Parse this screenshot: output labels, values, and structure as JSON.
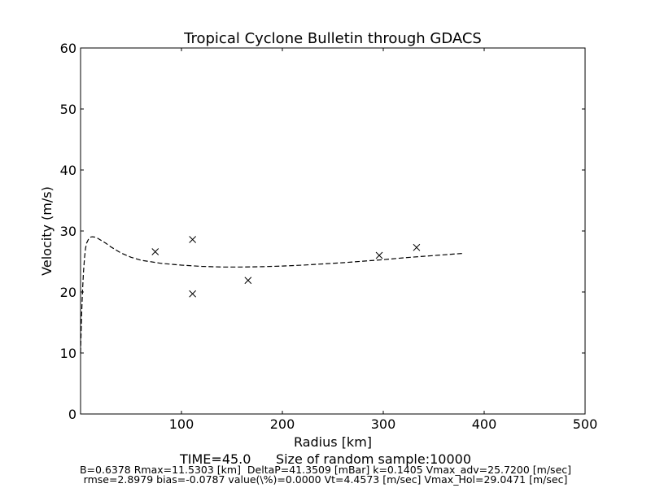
{
  "chart_data": {
    "type": "scatter",
    "title": "Tropical Cyclone Bulletin through GDACS",
    "xlabel": "Radius [km]",
    "ylabel": "Velocity (m/s)",
    "xlim": [
      0,
      500
    ],
    "ylim": [
      0,
      60
    ],
    "xticks": [
      100,
      200,
      300,
      400,
      500
    ],
    "yticks": [
      0,
      10,
      20,
      30,
      40,
      50,
      60
    ],
    "grid": false,
    "series": [
      {
        "kind": "markers",
        "marker": "x",
        "x": [
          74,
          111,
          111,
          166,
          296,
          333
        ],
        "y": [
          26.6,
          28.6,
          19.7,
          21.9,
          26.0,
          27.3
        ]
      },
      {
        "kind": "dashed-line",
        "x": [
          0,
          0.5,
          1,
          2,
          3,
          4,
          5,
          6,
          8,
          10,
          11.5,
          14,
          17,
          20,
          25,
          30,
          40,
          50,
          60,
          80,
          100,
          120,
          140,
          160,
          180,
          200,
          220,
          240,
          260,
          280,
          300,
          320,
          340,
          360,
          380
        ],
        "y": [
          10,
          13,
          16,
          20.5,
          23.5,
          25.8,
          27.2,
          28.0,
          28.7,
          29.0,
          29.05,
          29.0,
          28.8,
          28.5,
          28.0,
          27.4,
          26.4,
          25.7,
          25.2,
          24.7,
          24.4,
          24.2,
          24.1,
          24.1,
          24.15,
          24.25,
          24.4,
          24.6,
          24.8,
          25.05,
          25.3,
          25.6,
          25.85,
          26.1,
          26.35
        ]
      }
    ],
    "footer": {
      "line1": "TIME=45.0      Size of random sample:10000",
      "line2": "B=0.6378 Rmax=11.5303 [km]  DeltaP=41.3509 [mBar] k=0.1405 Vmax_adv=25.7200 [m/sec]",
      "line3": "rmse=2.8979 bias=-0.0787 value(\\%)=0.0000 Vt=4.4573 [m/sec] Vmax_Hol=29.0471 [m/sec]"
    }
  }
}
